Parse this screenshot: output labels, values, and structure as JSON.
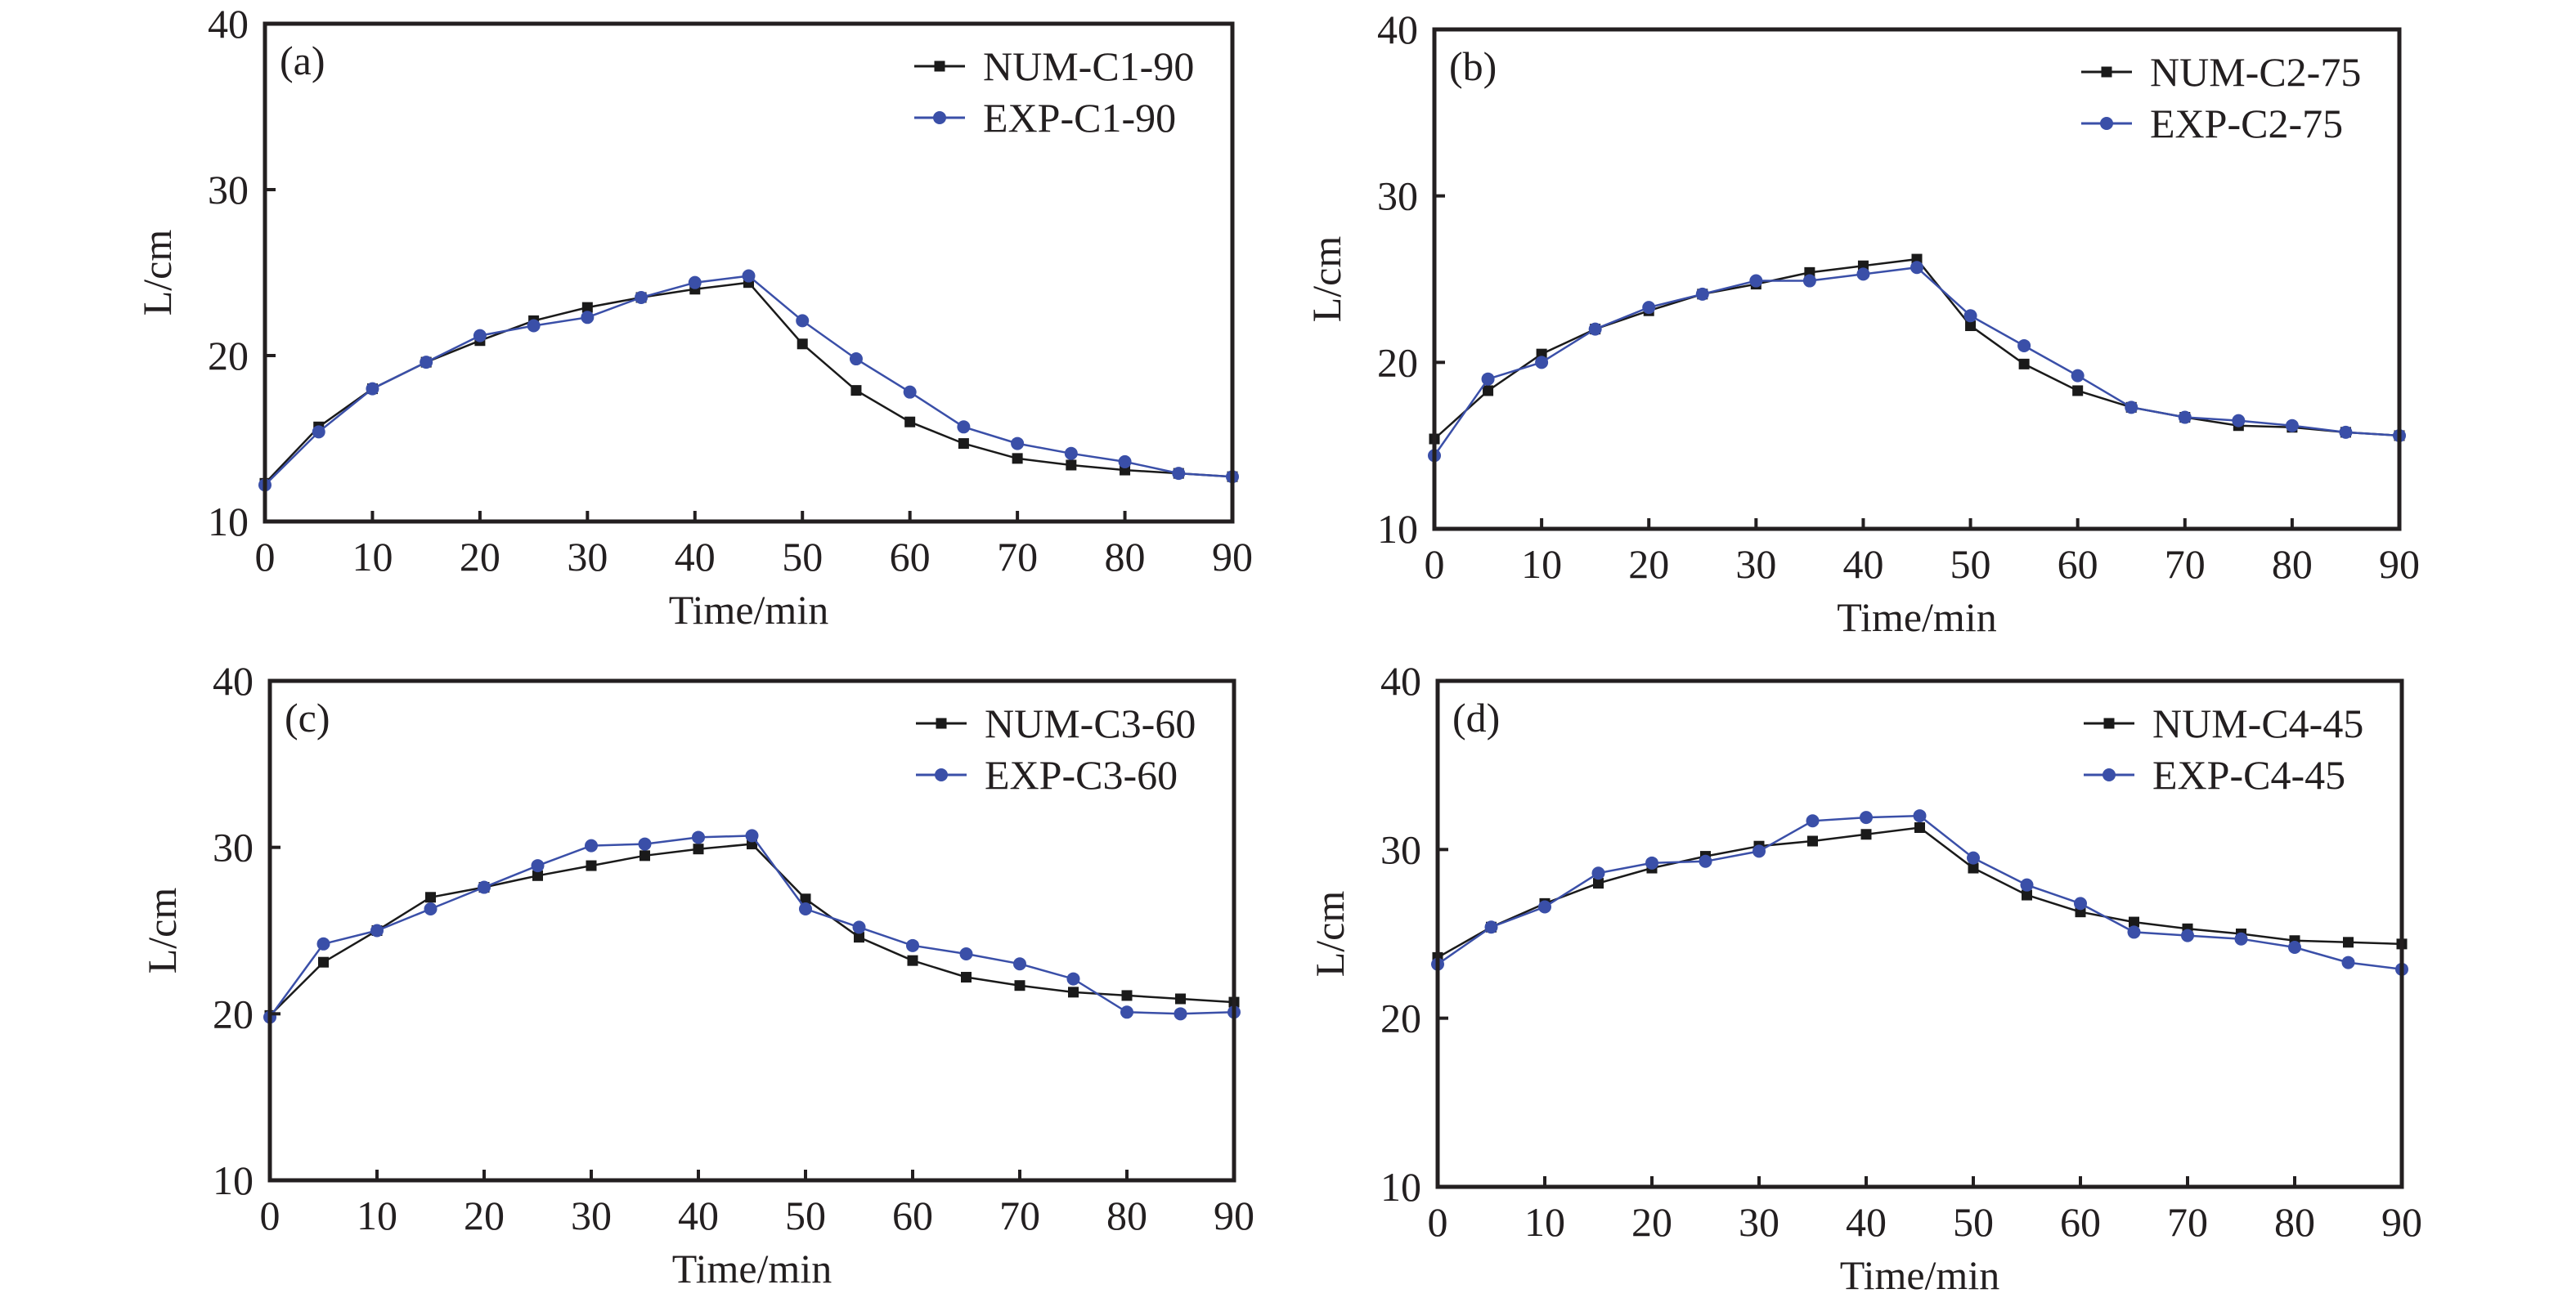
{
  "chart_data": [
    {
      "type": "line",
      "panel": "(a)",
      "xlabel": "Time/min",
      "ylabel": "L/cm",
      "xlim": [
        0,
        90
      ],
      "ylim": [
        10,
        40
      ],
      "xticks": [
        0,
        10,
        20,
        30,
        40,
        50,
        60,
        70,
        80,
        90
      ],
      "yticks": [
        10,
        20,
        30,
        40
      ],
      "grid": false,
      "legend_position": "top-right",
      "x": [
        0,
        5,
        10,
        15,
        20,
        25,
        30,
        35,
        40,
        45,
        50,
        55,
        60,
        65,
        70,
        75,
        80,
        85,
        90
      ],
      "series": [
        {
          "name": "NUM-C1-90",
          "marker": "square",
          "color": "#1a1a1a",
          "values": [
            12.3,
            15.7,
            18.0,
            19.6,
            20.9,
            22.1,
            22.9,
            23.5,
            24.0,
            24.4,
            20.7,
            17.9,
            16.0,
            14.7,
            13.8,
            13.4,
            13.1,
            12.9,
            12.7
          ]
        },
        {
          "name": "EXP-C1-90",
          "marker": "circle",
          "color": "#3a4fa8",
          "values": [
            12.2,
            15.4,
            18.0,
            19.6,
            21.2,
            21.8,
            22.3,
            23.5,
            24.4,
            24.8,
            22.1,
            19.8,
            17.8,
            15.7,
            14.7,
            14.1,
            13.6,
            12.9,
            12.7
          ]
        }
      ]
    },
    {
      "type": "line",
      "panel": "(b)",
      "xlabel": "Time/min",
      "ylabel": "L/cm",
      "xlim": [
        0,
        90
      ],
      "ylim": [
        10,
        40
      ],
      "xticks": [
        0,
        10,
        20,
        30,
        40,
        50,
        60,
        70,
        80,
        90
      ],
      "yticks": [
        10,
        20,
        30,
        40
      ],
      "grid": false,
      "legend_position": "top-right",
      "x": [
        0,
        5,
        10,
        15,
        20,
        25,
        30,
        35,
        40,
        45,
        50,
        55,
        60,
        65,
        70,
        75,
        80,
        85,
        90
      ],
      "series": [
        {
          "name": "NUM-C2-75",
          "marker": "square",
          "color": "#1a1a1a",
          "values": [
            15.4,
            18.3,
            20.5,
            22.0,
            23.1,
            24.1,
            24.7,
            25.4,
            25.8,
            26.2,
            22.2,
            19.9,
            18.3,
            17.3,
            16.7,
            16.2,
            16.1,
            15.8,
            15.6
          ]
        },
        {
          "name": "EXP-C2-75",
          "marker": "circle",
          "color": "#3a4fa8",
          "values": [
            14.4,
            19.0,
            20.0,
            22.0,
            23.3,
            24.1,
            24.9,
            24.9,
            25.3,
            25.7,
            22.8,
            21.0,
            19.2,
            17.3,
            16.7,
            16.5,
            16.2,
            15.8,
            15.6
          ]
        }
      ]
    },
    {
      "type": "line",
      "panel": "(c)",
      "xlabel": "Time/min",
      "ylabel": "L/cm",
      "xlim": [
        0,
        90
      ],
      "ylim": [
        10,
        40
      ],
      "xticks": [
        0,
        10,
        20,
        30,
        40,
        50,
        60,
        70,
        80,
        90
      ],
      "yticks": [
        10,
        20,
        30,
        40
      ],
      "grid": false,
      "legend_position": "top-right",
      "x": [
        0,
        5,
        10,
        15,
        20,
        25,
        30,
        35,
        40,
        45,
        50,
        55,
        60,
        65,
        70,
        75,
        80,
        85,
        90
      ],
      "series": [
        {
          "name": "NUM-C3-60",
          "marker": "square",
          "color": "#1a1a1a",
          "values": [
            19.9,
            23.1,
            25.0,
            27.0,
            27.6,
            28.3,
            28.9,
            29.5,
            29.9,
            30.2,
            26.9,
            24.6,
            23.2,
            22.2,
            21.7,
            21.3,
            21.1,
            20.9,
            20.7
          ]
        },
        {
          "name": "EXP-C3-60",
          "marker": "circle",
          "color": "#3a4fa8",
          "values": [
            19.8,
            24.2,
            25.0,
            26.3,
            27.6,
            28.9,
            30.1,
            30.2,
            30.6,
            30.7,
            26.3,
            25.2,
            24.1,
            23.6,
            23.0,
            22.1,
            20.1,
            20.0,
            20.1
          ]
        }
      ]
    },
    {
      "type": "line",
      "panel": "(d)",
      "xlabel": "Time/min",
      "ylabel": "L/cm",
      "xlim": [
        0,
        90
      ],
      "ylim": [
        10,
        40
      ],
      "xticks": [
        0,
        10,
        20,
        30,
        40,
        50,
        60,
        70,
        80,
        90
      ],
      "yticks": [
        10,
        20,
        30,
        40
      ],
      "grid": false,
      "legend_position": "top-right",
      "x": [
        0,
        5,
        10,
        15,
        20,
        25,
        30,
        35,
        40,
        45,
        50,
        55,
        60,
        65,
        70,
        75,
        80,
        85,
        90
      ],
      "series": [
        {
          "name": "NUM-C4-45",
          "marker": "square",
          "color": "#1a1a1a",
          "values": [
            23.6,
            25.4,
            26.8,
            28.0,
            28.9,
            29.6,
            30.2,
            30.5,
            30.9,
            31.3,
            28.9,
            27.3,
            26.3,
            25.7,
            25.3,
            25.0,
            24.6,
            24.5,
            24.4
          ]
        },
        {
          "name": "EXP-C4-45",
          "marker": "circle",
          "color": "#3a4fa8",
          "values": [
            23.2,
            25.4,
            26.6,
            28.6,
            29.2,
            29.3,
            29.9,
            31.7,
            31.9,
            32.0,
            29.5,
            27.9,
            26.8,
            25.1,
            24.9,
            24.7,
            24.2,
            23.3,
            22.9
          ]
        }
      ]
    }
  ]
}
